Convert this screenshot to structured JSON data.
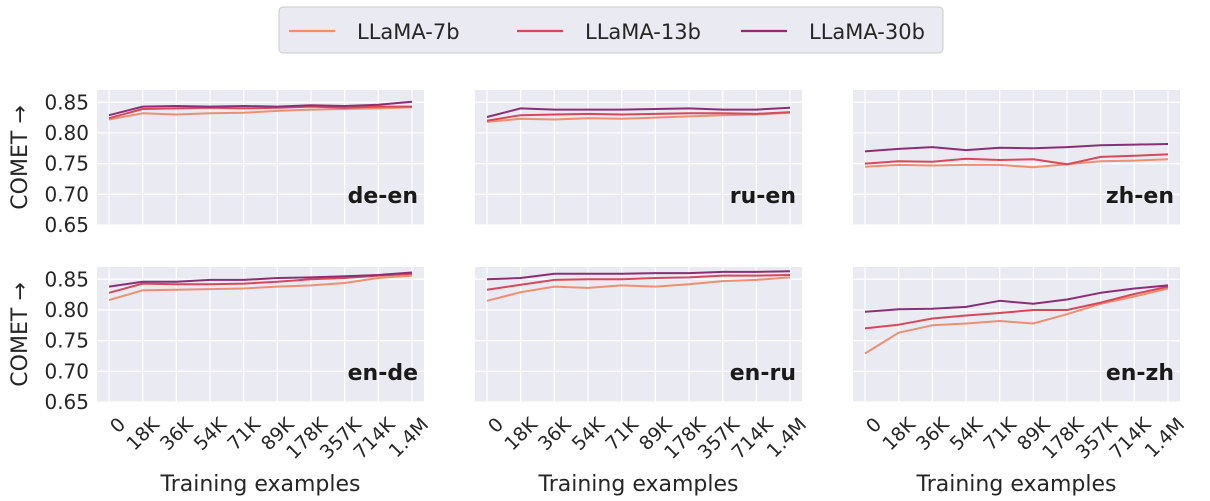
{
  "chart_data": {
    "type": "line",
    "categories": [
      "0",
      "18K",
      "36K",
      "54K",
      "71K",
      "89K",
      "178K",
      "357K",
      "714K",
      "1.4M"
    ],
    "xlabel": "Training examples",
    "ylabel": "COMET →",
    "ylim": [
      0.65,
      0.87
    ],
    "yticks": [
      "0.85",
      "0.80",
      "0.75",
      "0.70",
      "0.65"
    ],
    "ytick_values": [
      0.85,
      0.8,
      0.75,
      0.7,
      0.65
    ],
    "grid": true,
    "legend": {
      "placement": "top-center"
    },
    "series_names": [
      "LLaMA-7b",
      "LLaMA-13b",
      "LLaMA-30b"
    ],
    "series_colors": [
      "#ee8f72",
      "#d9475b",
      "#8a2f76"
    ],
    "panels": [
      {
        "label": "de-en",
        "series": [
          {
            "name": "LLaMA-7b",
            "values": [
              0.822,
              0.832,
              0.83,
              0.832,
              0.833,
              0.836,
              0.838,
              0.839,
              0.84,
              0.842
            ]
          },
          {
            "name": "LLaMA-13b",
            "values": [
              0.824,
              0.839,
              0.84,
              0.841,
              0.84,
              0.841,
              0.843,
              0.841,
              0.843,
              0.843
            ]
          },
          {
            "name": "LLaMA-30b",
            "values": [
              0.829,
              0.843,
              0.844,
              0.843,
              0.844,
              0.843,
              0.845,
              0.844,
              0.846,
              0.851
            ]
          }
        ]
      },
      {
        "label": "ru-en",
        "series": [
          {
            "name": "LLaMA-7b",
            "values": [
              0.818,
              0.823,
              0.822,
              0.824,
              0.823,
              0.825,
              0.827,
              0.829,
              0.83,
              0.833
            ]
          },
          {
            "name": "LLaMA-13b",
            "values": [
              0.82,
              0.829,
              0.83,
              0.831,
              0.83,
              0.831,
              0.832,
              0.832,
              0.831,
              0.834
            ]
          },
          {
            "name": "LLaMA-30b",
            "values": [
              0.826,
              0.84,
              0.838,
              0.838,
              0.838,
              0.839,
              0.84,
              0.838,
              0.838,
              0.841
            ]
          }
        ]
      },
      {
        "label": "zh-en",
        "series": [
          {
            "name": "LLaMA-7b",
            "values": [
              0.745,
              0.748,
              0.747,
              0.748,
              0.748,
              0.744,
              0.749,
              0.754,
              0.755,
              0.757
            ]
          },
          {
            "name": "LLaMA-13b",
            "values": [
              0.75,
              0.754,
              0.753,
              0.758,
              0.756,
              0.757,
              0.749,
              0.761,
              0.763,
              0.765
            ]
          },
          {
            "name": "LLaMA-30b",
            "values": [
              0.77,
              0.774,
              0.777,
              0.772,
              0.776,
              0.775,
              0.777,
              0.78,
              0.781,
              0.782
            ]
          }
        ]
      },
      {
        "label": "en-de",
        "series": [
          {
            "name": "LLaMA-7b",
            "values": [
              0.816,
              0.832,
              0.833,
              0.834,
              0.835,
              0.838,
              0.84,
              0.844,
              0.852,
              0.856
            ]
          },
          {
            "name": "LLaMA-13b",
            "values": [
              0.828,
              0.843,
              0.842,
              0.842,
              0.843,
              0.846,
              0.85,
              0.852,
              0.856,
              0.859
            ]
          },
          {
            "name": "LLaMA-30b",
            "values": [
              0.838,
              0.846,
              0.846,
              0.849,
              0.849,
              0.852,
              0.853,
              0.855,
              0.857,
              0.861
            ]
          }
        ]
      },
      {
        "label": "en-ru",
        "series": [
          {
            "name": "LLaMA-7b",
            "values": [
              0.815,
              0.829,
              0.838,
              0.836,
              0.84,
              0.838,
              0.842,
              0.847,
              0.849,
              0.853
            ]
          },
          {
            "name": "LLaMA-13b",
            "values": [
              0.833,
              0.841,
              0.849,
              0.85,
              0.85,
              0.852,
              0.853,
              0.856,
              0.856,
              0.857
            ]
          },
          {
            "name": "LLaMA-30b",
            "values": [
              0.85,
              0.852,
              0.859,
              0.859,
              0.859,
              0.86,
              0.86,
              0.862,
              0.862,
              0.863
            ]
          }
        ]
      },
      {
        "label": "en-zh",
        "series": [
          {
            "name": "LLaMA-7b",
            "values": [
              0.729,
              0.763,
              0.775,
              0.778,
              0.782,
              0.778,
              0.793,
              0.81,
              0.822,
              0.835
            ]
          },
          {
            "name": "LLaMA-13b",
            "values": [
              0.77,
              0.776,
              0.786,
              0.791,
              0.795,
              0.8,
              0.8,
              0.812,
              0.826,
              0.838
            ]
          },
          {
            "name": "LLaMA-30b",
            "values": [
              0.797,
              0.801,
              0.802,
              0.805,
              0.815,
              0.81,
              0.817,
              0.828,
              0.835,
              0.84
            ]
          }
        ]
      }
    ]
  }
}
